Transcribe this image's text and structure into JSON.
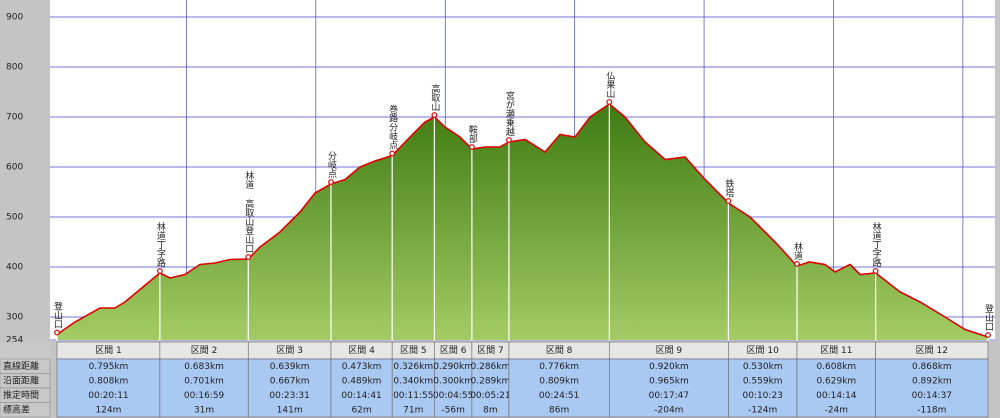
{
  "chart_data": {
    "type": "area",
    "xlim": [
      0,
      7.194
    ],
    "xticks": [
      1,
      2,
      3,
      4,
      5,
      6,
      7
    ],
    "ylim": [
      254,
      934
    ],
    "yticks": [
      254,
      300,
      400,
      500,
      600,
      700,
      800,
      900
    ],
    "grid": true,
    "color": "#5e9428",
    "line_color": "#e00000",
    "x": [
      0,
      0.139,
      0.332,
      0.448,
      0.525,
      0.795,
      0.873,
      0.989,
      1.105,
      1.221,
      1.337,
      1.478,
      1.569,
      1.723,
      1.878,
      1.994,
      2.117,
      2.226,
      2.342,
      2.457,
      2.59,
      2.728,
      2.844,
      2.916,
      2.998,
      3.114,
      3.206,
      3.307,
      3.423,
      3.492,
      3.617,
      3.771,
      3.887,
      4.003,
      4.119,
      4.268,
      4.389,
      4.544,
      4.699,
      4.853,
      5.008,
      5.188,
      5.355,
      5.549,
      5.718,
      5.813,
      5.935,
      6.012,
      6.128,
      6.206,
      6.326,
      6.515,
      6.669,
      6.862,
      7.017,
      7.194
    ],
    "values": [
      265,
      290,
      318,
      318,
      330,
      388,
      378,
      385,
      405,
      408,
      415,
      416,
      440,
      470,
      510,
      548,
      566,
      575,
      600,
      612,
      623,
      660,
      690,
      700,
      680,
      660,
      636,
      640,
      640,
      650,
      655,
      630,
      665,
      660,
      700,
      726,
      700,
      650,
      615,
      620,
      575,
      528,
      500,
      450,
      402,
      410,
      405,
      390,
      405,
      385,
      388,
      350,
      330,
      300,
      275,
      260
    ],
    "waypoints": [
      {
        "label": "登山口",
        "x": 0,
        "y": 265
      },
      {
        "label": "林道丁字路",
        "x": 0.795,
        "y": 388
      },
      {
        "label": "林道 高取山登山口",
        "x": 1.478,
        "y": 416
      },
      {
        "label": "分岐点",
        "x": 2.117,
        "y": 566
      },
      {
        "label": "巻路分岐点",
        "x": 2.59,
        "y": 623
      },
      {
        "label": "高取山",
        "x": 2.916,
        "y": 700
      },
      {
        "label": "鞍部",
        "x": 3.206,
        "y": 636
      },
      {
        "label": "宮が瀬乗越",
        "x": 3.492,
        "y": 650
      },
      {
        "label": "仏果山",
        "x": 4.268,
        "y": 726
      },
      {
        "label": "鉄塔",
        "x": 5.188,
        "y": 528
      },
      {
        "label": "林道",
        "x": 5.718,
        "y": 402
      },
      {
        "label": "林道丁字路",
        "x": 6.326,
        "y": 388
      },
      {
        "label": "登山口",
        "x": 7.194,
        "y": 260
      }
    ]
  },
  "table": {
    "row_labels": [
      "直線距離",
      "沿面距離",
      "推定時間",
      "標高差"
    ],
    "sections": [
      {
        "label": "区間 1",
        "cells": [
          "0.795km",
          "0.808km",
          "00:20:11",
          "124m"
        ]
      },
      {
        "label": "区間 2",
        "cells": [
          "0.683km",
          "0.701km",
          "00:16:59",
          "31m"
        ]
      },
      {
        "label": "区間 3",
        "cells": [
          "0.639km",
          "0.667km",
          "00:23:31",
          "141m"
        ]
      },
      {
        "label": "区間 4",
        "cells": [
          "0.473km",
          "0.489km",
          "00:14:41",
          "62m"
        ]
      },
      {
        "label": "区間 5",
        "cells": [
          "0.326km",
          "0.340km",
          "00:11:55",
          "71m"
        ]
      },
      {
        "label": "区間 6",
        "cells": [
          "0.290km",
          "0.300km",
          "00:04:55",
          "-56m"
        ]
      },
      {
        "label": "区間 7",
        "cells": [
          "0.286km",
          "0.289km",
          "00:05:21",
          "8m"
        ]
      },
      {
        "label": "区間 8",
        "cells": [
          "0.776km",
          "0.809km",
          "00:24:51",
          "86m"
        ]
      },
      {
        "label": "区間 9",
        "cells": [
          "0.920km",
          "0.965km",
          "00:17:47",
          "-204m"
        ]
      },
      {
        "label": "区間 10",
        "cells": [
          "0.530km",
          "0.559km",
          "00:10:23",
          "-124m"
        ]
      },
      {
        "label": "区間 11",
        "cells": [
          "0.608km",
          "0.629km",
          "00:14:14",
          "-24m"
        ]
      },
      {
        "label": "区間 12",
        "cells": [
          "0.868km",
          "0.892km",
          "00:14:37",
          "-118m"
        ]
      }
    ]
  }
}
